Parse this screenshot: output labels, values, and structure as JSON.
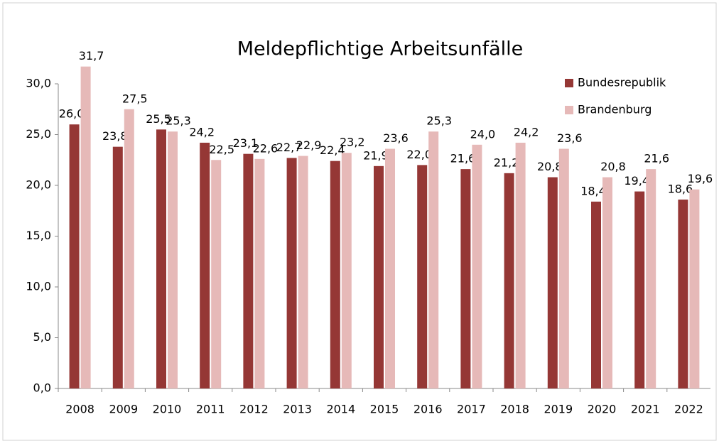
{
  "chart_data": {
    "type": "bar",
    "title": "Meldepflichtige Arbeitsunfälle",
    "categories": [
      "2008",
      "2009",
      "2010",
      "2011",
      "2012",
      "2013",
      "2014",
      "2015",
      "2016",
      "2017",
      "2018",
      "2019",
      "2020",
      "2021",
      "2022"
    ],
    "series": [
      {
        "name": "Bundesrepublik",
        "color": "#953735",
        "values": [
          26.0,
          23.8,
          25.5,
          24.2,
          23.1,
          22.7,
          22.4,
          21.9,
          22.0,
          21.6,
          21.2,
          20.8,
          18.4,
          19.4,
          18.6
        ],
        "value_labels": [
          "26,0",
          "23,8",
          "25,5",
          "24,2",
          "23,1",
          "22,7",
          "22,4",
          "21,9",
          "22,0",
          "21,6",
          "21,2",
          "20,8",
          "18,4",
          "19,4",
          "18,6"
        ]
      },
      {
        "name": "Brandenburg",
        "color": "#e6b9b8",
        "values": [
          31.7,
          27.5,
          25.3,
          22.5,
          22.6,
          22.9,
          23.2,
          23.6,
          25.3,
          24.0,
          24.2,
          23.6,
          20.8,
          21.6,
          19.6
        ],
        "value_labels": [
          "31,7",
          "27,5",
          "25,3",
          "22,5",
          "22,6",
          "22,9",
          "23,2",
          "23,6",
          "25,3",
          "24,0",
          "24,2",
          "23,6",
          "20,8",
          "21,6",
          "19,6"
        ]
      }
    ],
    "ylim": [
      0,
      30
    ],
    "yticks": [
      {
        "value": 0,
        "label": "0,0"
      },
      {
        "value": 5,
        "label": "5,0"
      },
      {
        "value": 10,
        "label": "10,0"
      },
      {
        "value": 15,
        "label": "15,0"
      },
      {
        "value": 20,
        "label": "20,0"
      },
      {
        "value": 25,
        "label": "25,0"
      },
      {
        "value": 30,
        "label": "30,0"
      }
    ],
    "legend": "top-right"
  }
}
